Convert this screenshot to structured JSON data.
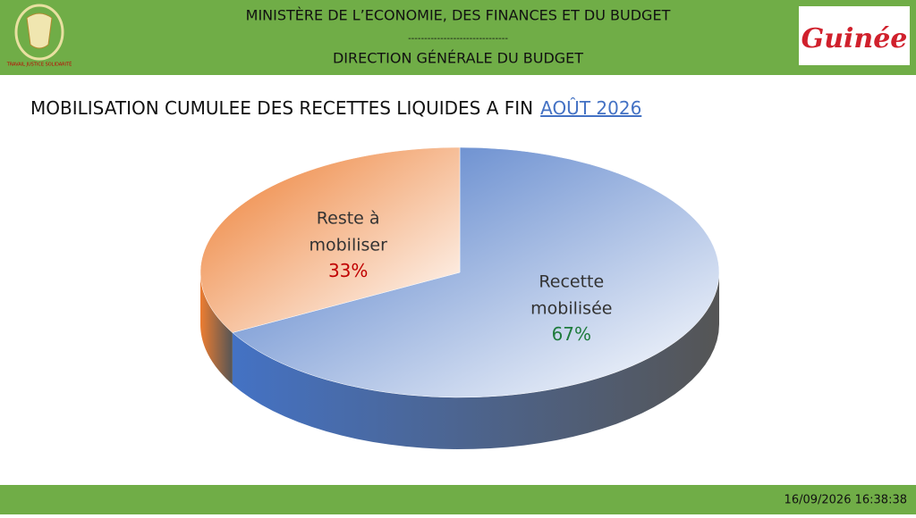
{
  "header": {
    "ministry": "MINISTÈRE DE L’ECONOMIE, DES FINANCES ET DU BUDGET",
    "separator": "-------------------------------",
    "direction": "DIRECTION GÉNÉRALE DU BUDGET",
    "motto": "TRAVAIL JUSTICE SOLIDARITÉ",
    "logo_text": "Guinée"
  },
  "chart_data": {
    "type": "pie",
    "title": "MOBILISATION CUMULEE DES RECETTES LIQUIDES A FIN",
    "title_period": "AOÛT 2026",
    "categories": [
      "Recette mobilisée",
      "Reste à mobiliser"
    ],
    "values": [
      67,
      33
    ],
    "value_labels": [
      "67%",
      "33%"
    ],
    "colors": [
      "#4472c4",
      "#ed7d31"
    ],
    "label_colors": [
      "#1e7b3c",
      "#c00000"
    ]
  },
  "footer": {
    "timestamp": "16/09/2026 16:38:38"
  }
}
